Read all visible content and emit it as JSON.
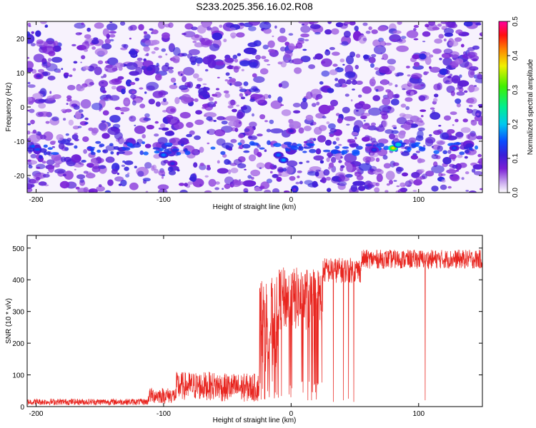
{
  "title": "S233.2025.356.16.02.R08",
  "chart_data": [
    {
      "type": "heatmap",
      "name": "spectrogram",
      "xlabel": "Height of straight line (km)",
      "ylabel": "Frequency (Hz)",
      "xlim": [
        -207,
        150
      ],
      "ylim": [
        -25,
        25
      ],
      "xticks": [
        -200,
        -100,
        0,
        100
      ],
      "yticks": [
        -20,
        -10,
        0,
        10,
        20
      ],
      "colorbar": {
        "label": "Normalized spectral amplitude",
        "range": [
          0,
          0.5
        ],
        "ticks": [
          0.0,
          0.1,
          0.2,
          0.3,
          0.4,
          0.5
        ],
        "tick_labels": [
          "0.0",
          "0.1",
          "0.2",
          "0.3",
          "0.4",
          "0.5"
        ]
      },
      "features": [
        {
          "x": -198,
          "y": 9,
          "amplitude": 0.1
        },
        {
          "x": -100,
          "y": -14,
          "amplitude": 0.17
        },
        {
          "x": -93,
          "y": -16.5,
          "amplitude": 0.12
        },
        {
          "x": -10,
          "y": -14,
          "amplitude": 0.16
        },
        {
          "x": -6,
          "y": -15.5,
          "amplitude": 0.18
        },
        {
          "x": 0,
          "y": -7,
          "amplitude": 0.11
        },
        {
          "x": 65,
          "y": -12.5,
          "amplitude": 0.13
        },
        {
          "x": 80,
          "y": -12,
          "amplitude": 0.38
        },
        {
          "x": 84,
          "y": -11,
          "amplitude": 0.22
        },
        {
          "x": 128,
          "y": -12,
          "amplitude": 0.14
        }
      ]
    },
    {
      "type": "line",
      "name": "snr",
      "xlabel": "Height of straight line (km)",
      "ylabel": "SNR (10 * v/v)",
      "xlim": [
        -207,
        150
      ],
      "ylim": [
        0,
        540
      ],
      "xticks": [
        -200,
        -100,
        0,
        100
      ],
      "yticks": [
        0,
        100,
        200,
        300,
        400,
        500
      ],
      "color": "#e8251f",
      "series": [
        {
          "name": "SNR",
          "segments": [
            {
              "x_start": -207,
              "x_end": -112,
              "mean": 15,
              "noise": 10
            },
            {
              "x_start": -112,
              "x_end": -90,
              "mean": 35,
              "noise": 25
            },
            {
              "x_start": -90,
              "x_end": -55,
              "mean": 65,
              "noise": 45
            },
            {
              "x_start": -55,
              "x_end": -25,
              "mean": 60,
              "noise": 45
            },
            {
              "x_start": -25,
              "x_end": -10,
              "mean": 260,
              "noise": 150
            },
            {
              "x_start": -10,
              "x_end": 25,
              "mean": 340,
              "noise": 100
            },
            {
              "x_start": 25,
              "x_end": 55,
              "mean": 430,
              "noise": 40
            },
            {
              "x_start": 55,
              "x_end": 150,
              "mean": 465,
              "noise": 30
            }
          ],
          "dropouts": [
            {
              "x": 13,
              "y": 20
            },
            {
              "x": 16,
              "y": 20
            },
            {
              "x": 19,
              "y": 45
            },
            {
              "x": 33,
              "y": 15
            },
            {
              "x": 41,
              "y": 20
            },
            {
              "x": 45,
              "y": 25
            },
            {
              "x": 49,
              "y": 15
            },
            {
              "x": 105,
              "y": 20
            }
          ]
        }
      ]
    }
  ]
}
